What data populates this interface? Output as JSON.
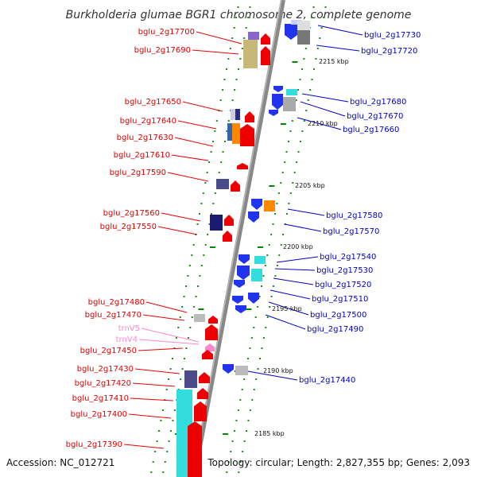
{
  "title": "Burkholderia glumae BGR1 chromosome 2, complete genome",
  "footer": {
    "accession": "Accession: NC_012721",
    "topology": "Topology: circular; Length: 2,827,355 bp; Genes: 2,093"
  },
  "colors": {
    "forward_label": "#e00000",
    "reverse_label": "#0000cc",
    "rna_label": "#ff88cc",
    "backbone": "#888888",
    "tick": "#008800"
  },
  "kbp_marks": [
    "2215 kbp",
    "2210 kbp",
    "2205 kbp",
    "2200 kbp",
    "2195 kbp",
    "2190 kbp",
    "2185 kbp"
  ],
  "left_labels": [
    "bglu_2g17700",
    "bglu_2g17690",
    "bglu_2g17650",
    "bglu_2g17640",
    "bglu_2g17630",
    "bglu_2g17610",
    "bglu_2g17590",
    "bglu_2g17560",
    "bglu_2g17550",
    "bglu_2g17480",
    "bglu_2g17470",
    "trnV5",
    "trnV4",
    "bglu_2g17450",
    "bglu_2g17430",
    "bglu_2g17420",
    "bglu_2g17410",
    "bglu_2g17400",
    "bglu_2g17390"
  ],
  "right_labels": [
    "bglu_2g17730",
    "bglu_2g17720",
    "bglu_2g17680",
    "bglu_2g17670",
    "bglu_2g17660",
    "bglu_2g17580",
    "bglu_2g17570",
    "bglu_2g17540",
    "bglu_2g17530",
    "bglu_2g17520",
    "bglu_2g17510",
    "bglu_2g17500",
    "bglu_2g17490",
    "bglu_2g17440"
  ]
}
